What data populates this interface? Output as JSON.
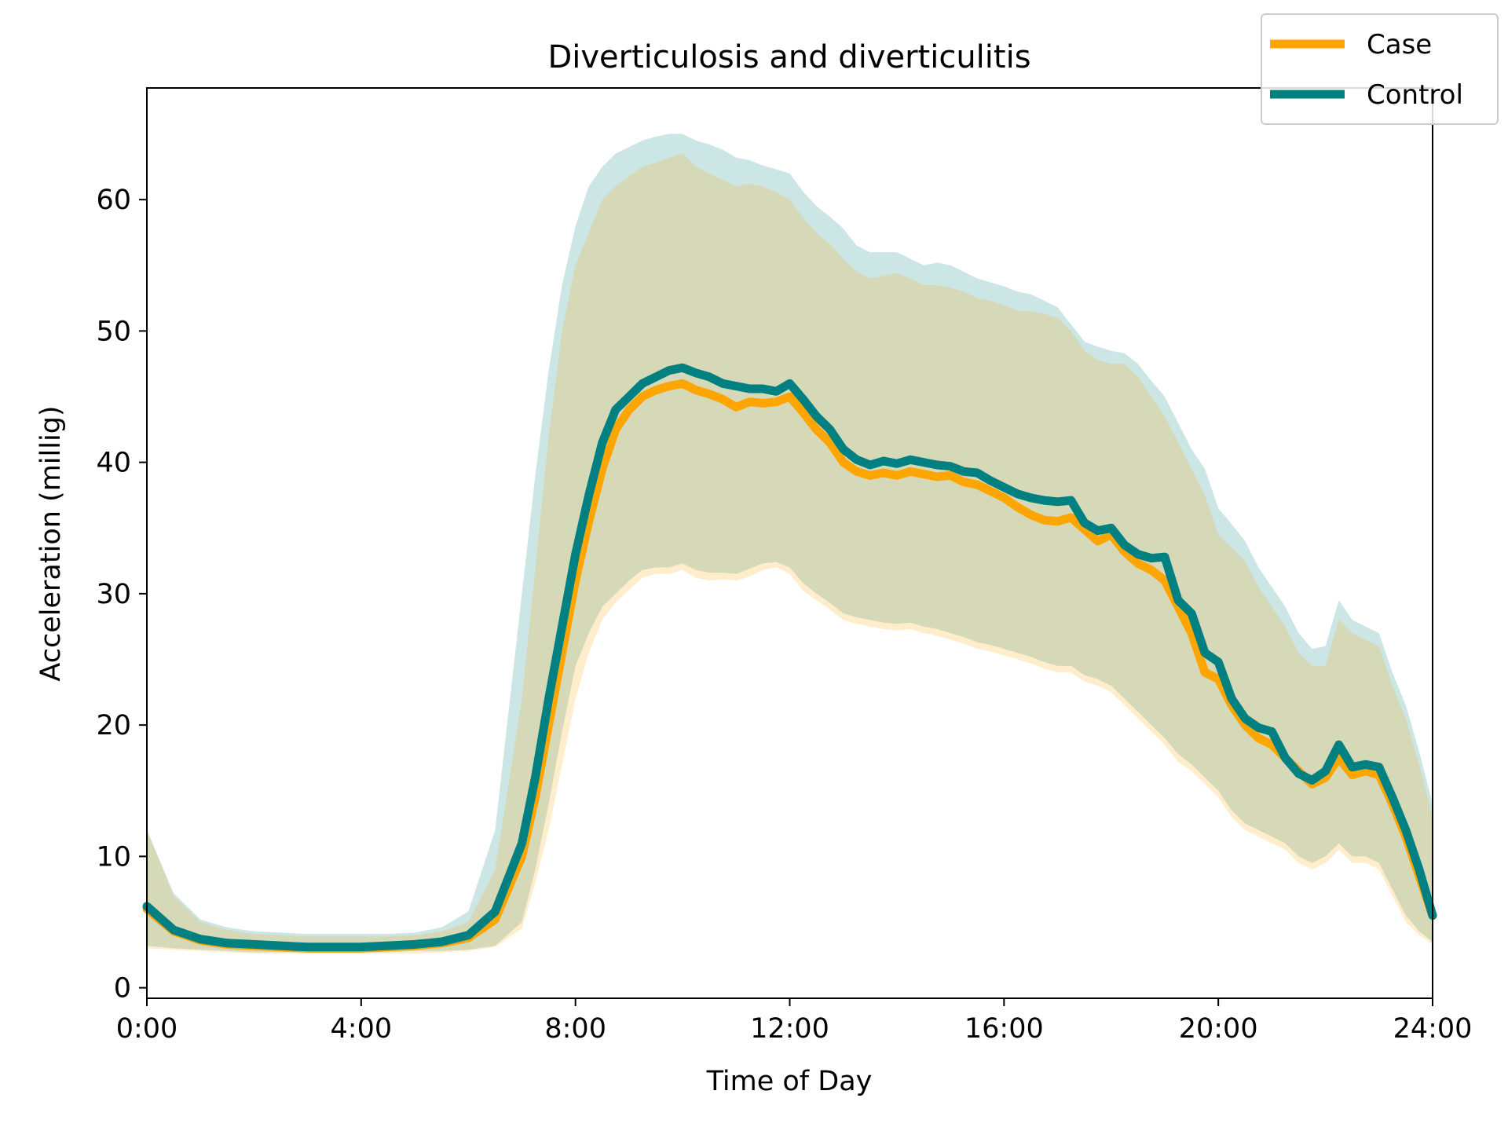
{
  "chart_data": {
    "type": "line",
    "title": "Diverticulosis and diverticulitis",
    "xlabel": "Time of Day",
    "ylabel": "Acceleration (millig)",
    "xlim": [
      0,
      24
    ],
    "ylim": [
      -0.8,
      68.5
    ],
    "x_ticks": [
      {
        "value": 0,
        "label": "0:00"
      },
      {
        "value": 4,
        "label": "4:00"
      },
      {
        "value": 8,
        "label": "8:00"
      },
      {
        "value": 12,
        "label": "12:00"
      },
      {
        "value": 16,
        "label": "16:00"
      },
      {
        "value": 20,
        "label": "20:00"
      },
      {
        "value": 24,
        "label": "24:00"
      }
    ],
    "y_ticks": [
      {
        "value": 0,
        "label": "0"
      },
      {
        "value": 10,
        "label": "10"
      },
      {
        "value": 20,
        "label": "20"
      },
      {
        "value": 30,
        "label": "30"
      },
      {
        "value": 40,
        "label": "40"
      },
      {
        "value": 50,
        "label": "50"
      },
      {
        "value": 60,
        "label": "60"
      }
    ],
    "grid": false,
    "legend_position": "top-right",
    "x": [
      0,
      0.5,
      1,
      1.5,
      2,
      2.5,
      3,
      3.5,
      4,
      4.5,
      5,
      5.5,
      6,
      6.5,
      7,
      7.25,
      7.5,
      7.75,
      8,
      8.25,
      8.5,
      8.75,
      9,
      9.25,
      9.5,
      9.75,
      10,
      10.25,
      10.5,
      10.75,
      11,
      11.25,
      11.5,
      11.75,
      12,
      12.25,
      12.5,
      12.75,
      13,
      13.25,
      13.5,
      13.75,
      14,
      14.25,
      14.5,
      14.75,
      15,
      15.25,
      15.5,
      15.75,
      16,
      16.25,
      16.5,
      16.75,
      17,
      17.25,
      17.5,
      17.75,
      18,
      18.25,
      18.5,
      18.75,
      19,
      19.25,
      19.5,
      19.75,
      20,
      20.25,
      20.5,
      20.75,
      21,
      21.25,
      21.5,
      21.75,
      22,
      22.25,
      22.5,
      22.75,
      23,
      23.25,
      23.5,
      23.75,
      24
    ],
    "series": [
      {
        "name": "Case",
        "color": "#ffa500",
        "band_color": "#ffe4b3",
        "values": [
          6.0,
          4.3,
          3.6,
          3.3,
          3.2,
          3.1,
          3.0,
          3.0,
          3.0,
          3.1,
          3.2,
          3.4,
          3.8,
          5.2,
          10.0,
          14.5,
          20.0,
          25.5,
          31.0,
          35.5,
          39.5,
          42.5,
          44.0,
          45.0,
          45.5,
          45.8,
          46.0,
          45.5,
          45.2,
          44.8,
          44.2,
          44.6,
          44.5,
          44.6,
          45.0,
          43.8,
          42.5,
          41.5,
          40.0,
          39.3,
          39.0,
          39.2,
          39.0,
          39.3,
          39.1,
          38.9,
          39.0,
          38.5,
          38.3,
          37.8,
          37.3,
          36.6,
          36.0,
          35.6,
          35.5,
          35.8,
          34.9,
          34.0,
          34.5,
          33.2,
          32.3,
          31.8,
          31.0,
          29.0,
          27.0,
          24.0,
          23.5,
          21.5,
          20.0,
          19.0,
          18.5,
          17.5,
          16.5,
          15.5,
          16.0,
          17.5,
          16.2,
          16.5,
          16.2,
          14.0,
          11.5,
          8.5,
          5.5
        ],
        "lower": [
          3.0,
          2.9,
          2.8,
          2.7,
          2.6,
          2.6,
          2.6,
          2.6,
          2.6,
          2.6,
          2.6,
          2.7,
          2.8,
          3.1,
          4.5,
          8.0,
          12.0,
          17.0,
          22.0,
          25.5,
          28.0,
          29.3,
          30.3,
          31.2,
          31.5,
          31.5,
          31.8,
          31.2,
          31.0,
          31.1,
          31.0,
          31.3,
          31.8,
          32.0,
          31.5,
          30.2,
          29.5,
          28.8,
          28.0,
          27.7,
          27.5,
          27.3,
          27.2,
          27.3,
          27.0,
          26.8,
          26.5,
          26.2,
          25.8,
          25.6,
          25.3,
          25.0,
          24.7,
          24.3,
          24.0,
          24.0,
          23.3,
          23.0,
          22.5,
          21.5,
          20.5,
          19.5,
          18.5,
          17.2,
          16.5,
          15.5,
          14.5,
          13.0,
          12.0,
          11.5,
          11.0,
          10.5,
          9.5,
          9.0,
          9.5,
          10.5,
          9.5,
          9.5,
          9.0,
          7.0,
          5.0,
          4.0,
          3.3
        ],
        "upper": [
          12.0,
          7.0,
          5.0,
          4.4,
          4.1,
          4.0,
          3.9,
          3.9,
          3.9,
          3.9,
          4.0,
          4.3,
          5.0,
          9.0,
          22.0,
          32.0,
          42.0,
          50.0,
          55.0,
          57.5,
          60.0,
          61.0,
          61.8,
          62.5,
          62.8,
          63.2,
          63.5,
          62.5,
          62.0,
          61.5,
          61.0,
          61.2,
          61.0,
          60.6,
          60.0,
          58.6,
          57.5,
          56.6,
          55.5,
          54.5,
          54.0,
          54.2,
          54.4,
          54.0,
          53.5,
          53.5,
          53.3,
          53.0,
          52.5,
          52.3,
          52.0,
          51.5,
          51.5,
          51.3,
          51.0,
          50.0,
          48.5,
          47.8,
          47.5,
          47.5,
          46.5,
          45.0,
          43.5,
          41.5,
          39.5,
          37.5,
          34.5,
          33.5,
          32.5,
          30.5,
          29.0,
          27.5,
          25.5,
          24.5,
          24.5,
          28.0,
          27.0,
          26.5,
          26.0,
          23.0,
          20.5,
          17.0,
          13.0
        ]
      },
      {
        "name": "Control",
        "color": "#008080",
        "band_color": "#cce5e5",
        "values": [
          6.2,
          4.4,
          3.7,
          3.4,
          3.3,
          3.2,
          3.1,
          3.1,
          3.1,
          3.2,
          3.3,
          3.5,
          4.0,
          5.8,
          11.0,
          16.0,
          22.0,
          27.5,
          33.0,
          37.5,
          41.5,
          44.0,
          45.0,
          46.0,
          46.5,
          47.0,
          47.2,
          46.8,
          46.5,
          46.0,
          45.8,
          45.6,
          45.6,
          45.4,
          46.0,
          44.8,
          43.5,
          42.5,
          41.0,
          40.2,
          39.8,
          40.1,
          39.9,
          40.2,
          40.0,
          39.8,
          39.7,
          39.3,
          39.2,
          38.6,
          38.1,
          37.6,
          37.3,
          37.1,
          37.0,
          37.1,
          35.4,
          34.8,
          35.0,
          33.7,
          33.0,
          32.7,
          32.8,
          29.5,
          28.5,
          25.5,
          24.8,
          22.0,
          20.5,
          19.8,
          19.5,
          17.5,
          16.3,
          15.8,
          16.5,
          18.5,
          16.8,
          17.0,
          16.8,
          14.5,
          12.0,
          9.0,
          5.5
        ],
        "lower": [
          3.2,
          3.0,
          2.9,
          2.8,
          2.7,
          2.7,
          2.7,
          2.7,
          2.7,
          2.7,
          2.8,
          2.8,
          2.9,
          3.2,
          5.0,
          9.0,
          14.0,
          19.5,
          24.5,
          27.0,
          29.0,
          30.0,
          31.0,
          31.8,
          32.0,
          32.0,
          32.3,
          31.8,
          31.6,
          31.6,
          31.5,
          31.9,
          32.3,
          32.4,
          32.0,
          30.8,
          30.0,
          29.3,
          28.5,
          28.2,
          28.0,
          27.8,
          27.7,
          27.8,
          27.5,
          27.3,
          27.0,
          26.7,
          26.3,
          26.1,
          25.8,
          25.5,
          25.2,
          24.8,
          24.5,
          24.5,
          23.8,
          23.5,
          23.0,
          22.0,
          21.0,
          20.0,
          19.0,
          17.8,
          17.0,
          16.0,
          15.0,
          13.5,
          12.5,
          12.0,
          11.5,
          11.0,
          10.0,
          9.5,
          10.0,
          11.0,
          10.0,
          10.0,
          9.5,
          7.5,
          5.5,
          4.3,
          3.5
        ],
        "upper": [
          12.0,
          7.2,
          5.2,
          4.6,
          4.3,
          4.2,
          4.1,
          4.1,
          4.1,
          4.1,
          4.2,
          4.6,
          5.8,
          12.0,
          30.0,
          39.0,
          47.0,
          53.5,
          58.0,
          61.0,
          62.5,
          63.5,
          64.0,
          64.5,
          64.8,
          65.0,
          65.0,
          64.5,
          64.2,
          63.8,
          63.2,
          63.0,
          62.6,
          62.3,
          62.0,
          60.6,
          59.5,
          58.7,
          57.8,
          56.5,
          56.0,
          56.0,
          56.0,
          55.5,
          55.0,
          55.2,
          55.0,
          54.5,
          54.0,
          53.7,
          53.4,
          53.0,
          52.8,
          52.3,
          51.8,
          50.5,
          49.2,
          48.8,
          48.5,
          48.3,
          47.5,
          46.2,
          45.0,
          43.0,
          41.0,
          39.5,
          36.5,
          35.3,
          34.0,
          32.0,
          30.5,
          29.0,
          27.0,
          25.8,
          26.0,
          29.5,
          28.0,
          27.5,
          27.0,
          24.0,
          21.5,
          18.0,
          14.0
        ]
      }
    ]
  }
}
